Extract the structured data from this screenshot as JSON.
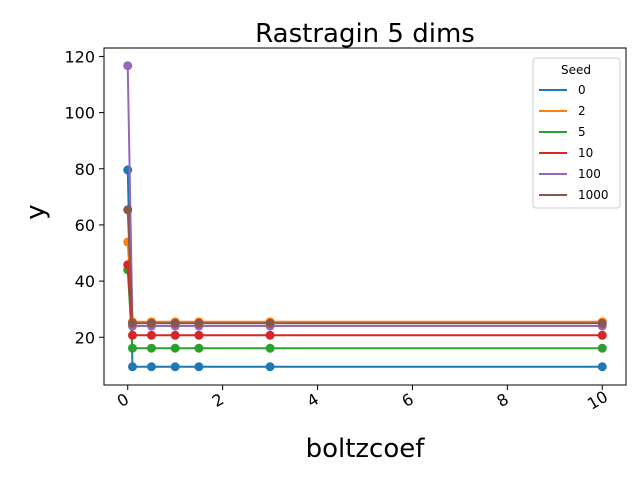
{
  "chart_data": {
    "type": "line",
    "title": "Rastragin 5 dims",
    "xlabel": "boltzcoef",
    "ylabel": "y",
    "xlim": [
      -0.5,
      10.5
    ],
    "ylim": [
      3,
      123
    ],
    "xticks": [
      0,
      2,
      4,
      6,
      8,
      10
    ],
    "yticks": [
      20,
      40,
      60,
      80,
      100,
      120
    ],
    "x": [
      0,
      0.1,
      0.5,
      1,
      1.5,
      3,
      10
    ],
    "legend": {
      "title": "Seed",
      "placement": "top-right"
    },
    "grid": false,
    "series": [
      {
        "name": "0",
        "color": "#1f77b4",
        "values": [
          79.6,
          9.5,
          9.5,
          9.5,
          9.5,
          9.5,
          9.5
        ]
      },
      {
        "name": "2",
        "color": "#ff7f0e",
        "values": [
          53.9,
          25.5,
          25.5,
          25.5,
          25.5,
          25.5,
          25.5
        ]
      },
      {
        "name": "5",
        "color": "#2ca02c",
        "values": [
          44.0,
          16.1,
          16.1,
          16.1,
          16.1,
          16.1,
          16.1
        ]
      },
      {
        "name": "10",
        "color": "#d62728",
        "values": [
          45.8,
          20.7,
          20.7,
          20.7,
          20.7,
          20.7,
          20.7
        ]
      },
      {
        "name": "100",
        "color": "#9467bd",
        "values": [
          116.7,
          24.0,
          24.0,
          24.0,
          24.0,
          24.0,
          24.0
        ]
      },
      {
        "name": "1000",
        "color": "#8c564b",
        "values": [
          65.4,
          25.0,
          25.0,
          25.0,
          25.0,
          25.0,
          25.0
        ]
      }
    ]
  }
}
